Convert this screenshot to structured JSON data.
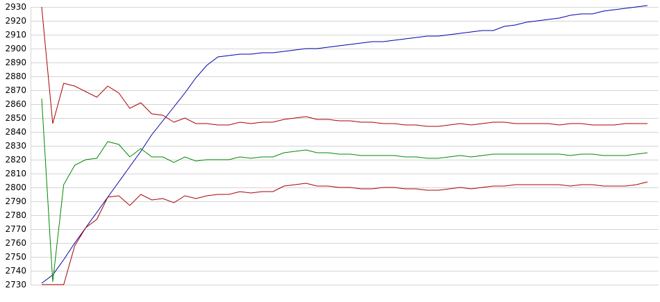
{
  "chart_data": {
    "type": "line",
    "title": "",
    "xlabel": "",
    "ylabel": "",
    "ylim": [
      2730,
      2930
    ],
    "yticks": [
      2730,
      2740,
      2750,
      2760,
      2770,
      2780,
      2790,
      2800,
      2810,
      2820,
      2830,
      2840,
      2850,
      2860,
      2870,
      2880,
      2890,
      2900,
      2910,
      2920,
      2930
    ],
    "grid": true,
    "legend": "none",
    "x": [
      1,
      2,
      3,
      4,
      5,
      6,
      7,
      8,
      9,
      10,
      11,
      12,
      13,
      14,
      15,
      16,
      17,
      18,
      19,
      20,
      21,
      22,
      23,
      24,
      25,
      26,
      27,
      28,
      29,
      30,
      31,
      32,
      33,
      34,
      35,
      36,
      37,
      38,
      39,
      40,
      41,
      42,
      43,
      44,
      45,
      46,
      47,
      48,
      49,
      50,
      51,
      52,
      53,
      54,
      55,
      56
    ],
    "xlim": [
      1,
      56
    ],
    "series": [
      {
        "color": "#0000aa",
        "values": [
          2731,
          2737,
          2748,
          2760,
          2771,
          2782,
          2793,
          2804,
          2815,
          2826,
          2838,
          2848,
          2858,
          2868,
          2879,
          2888,
          2894,
          2895,
          2896,
          2896,
          2897,
          2897,
          2898,
          2899,
          2900,
          2900,
          2901,
          2902,
          2903,
          2904,
          2905,
          2905,
          2906,
          2907,
          2908,
          2909,
          2909,
          2910,
          2911,
          2912,
          2913,
          2913,
          2916,
          2917,
          2919,
          2920,
          2921,
          2922,
          2924,
          2925,
          2925,
          2927,
          2928,
          2929,
          2930,
          2931
        ]
      },
      {
        "color": "#aa0000",
        "values": [
          2930,
          2846,
          2875,
          2873,
          2869,
          2865,
          2873,
          2868,
          2857,
          2861,
          2853,
          2852,
          2847,
          2850,
          2846,
          2846,
          2845,
          2845,
          2847,
          2846,
          2847,
          2847,
          2849,
          2850,
          2851,
          2849,
          2849,
          2848,
          2848,
          2847,
          2847,
          2846,
          2846,
          2845,
          2845,
          2844,
          2844,
          2845,
          2846,
          2845,
          2846,
          2847,
          2847,
          2846,
          2846,
          2846,
          2846,
          2845,
          2846,
          2846,
          2845,
          2845,
          2845,
          2846,
          2846,
          2846
        ]
      },
      {
        "color": "#008800",
        "values": [
          2864,
          2732,
          2802,
          2816,
          2820,
          2821,
          2833,
          2831,
          2822,
          2828,
          2822,
          2822,
          2818,
          2822,
          2819,
          2820,
          2820,
          2820,
          2822,
          2821,
          2822,
          2822,
          2825,
          2826,
          2827,
          2825,
          2825,
          2824,
          2824,
          2823,
          2823,
          2823,
          2823,
          2822,
          2822,
          2821,
          2821,
          2822,
          2823,
          2822,
          2823,
          2824,
          2824,
          2824,
          2824,
          2824,
          2824,
          2824,
          2823,
          2824,
          2824,
          2823,
          2823,
          2823,
          2824,
          2825
        ]
      },
      {
        "color": "#aa0000",
        "values": [
          2730,
          2730,
          2730,
          2758,
          2771,
          2777,
          2793,
          2794,
          2787,
          2795,
          2791,
          2792,
          2789,
          2794,
          2792,
          2794,
          2795,
          2795,
          2797,
          2796,
          2797,
          2797,
          2801,
          2802,
          2803,
          2801,
          2801,
          2800,
          2800,
          2799,
          2799,
          2800,
          2800,
          2799,
          2799,
          2798,
          2798,
          2799,
          2800,
          2799,
          2800,
          2801,
          2801,
          2802,
          2802,
          2802,
          2802,
          2802,
          2801,
          2802,
          2802,
          2801,
          2801,
          2801,
          2802,
          2804
        ]
      }
    ]
  }
}
